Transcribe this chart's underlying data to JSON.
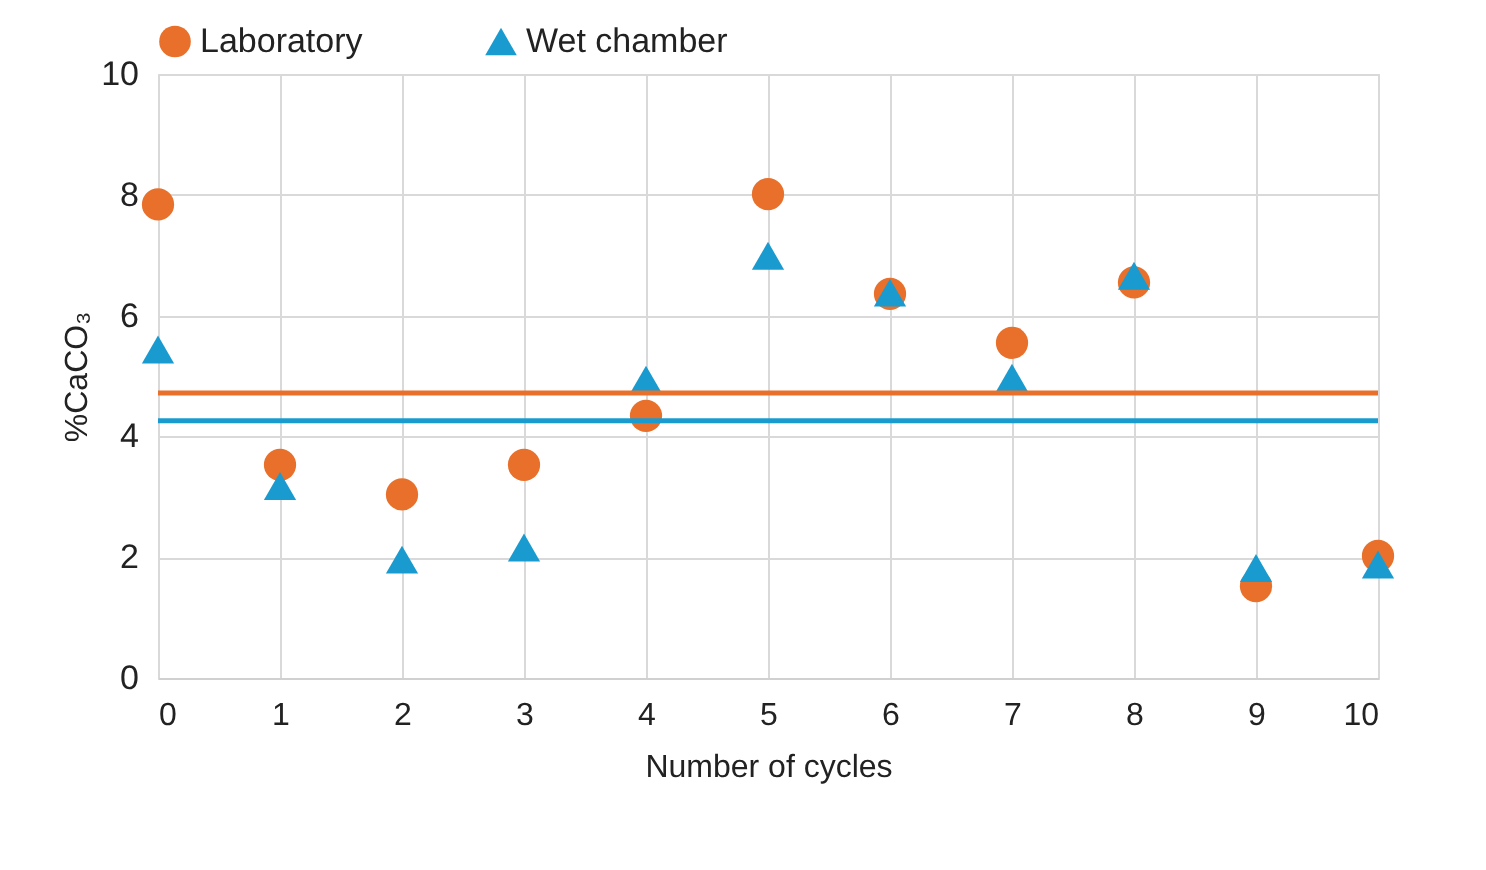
{
  "chart_data": {
    "type": "scatter",
    "xlabel": "Number of cycles",
    "ylabel": "%CaCO₃",
    "x": [
      0,
      1,
      2,
      3,
      4,
      5,
      6,
      7,
      8,
      9,
      10
    ],
    "series": [
      {
        "name": "Laboratory",
        "color": "#e8702a",
        "marker": "circle",
        "values": [
          7.84,
          3.53,
          3.04,
          3.53,
          4.34,
          8.01,
          6.36,
          5.55,
          6.55,
          1.52,
          2.02
        ]
      },
      {
        "name": "Wet chamber",
        "color": "#1a9bd0",
        "marker": "triangle",
        "values": [
          5.44,
          3.18,
          1.96,
          2.16,
          4.94,
          6.99,
          6.38,
          4.97,
          6.66,
          1.82,
          1.88
        ]
      }
    ],
    "ref_lines": [
      {
        "axis": "y",
        "value": 4.72,
        "color": "#e8702a"
      },
      {
        "axis": "y",
        "value": 4.26,
        "color": "#1a9bd0"
      }
    ],
    "xlim": [
      0,
      10
    ],
    "xticks": [
      0,
      1,
      2,
      3,
      4,
      5,
      6,
      7,
      8,
      9,
      10
    ],
    "ylim": [
      0,
      10
    ],
    "yticks": [
      0,
      2,
      4,
      6,
      8,
      10
    ],
    "grid": true,
    "legend": "top"
  }
}
